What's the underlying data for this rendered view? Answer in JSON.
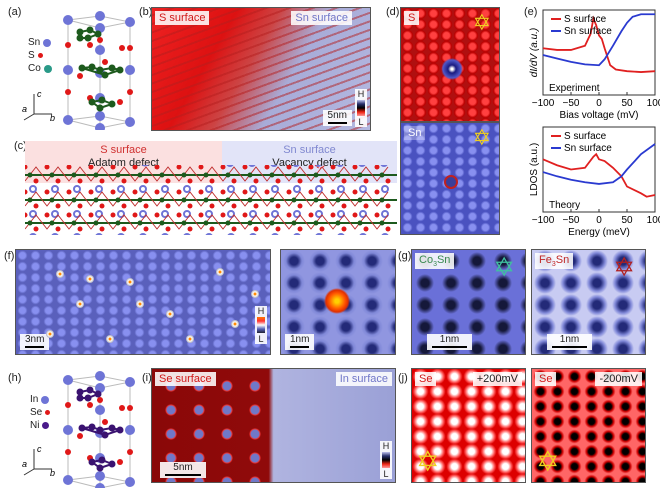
{
  "panels": {
    "a": "(a)",
    "b": "(b)",
    "c": "(c)",
    "d": "(d)",
    "e": "(e)",
    "f": "(f)",
    "g": "(g)",
    "h": "(h)",
    "i": "(i)",
    "j": "(j)"
  },
  "crystal_a": {
    "legend": [
      "Sn",
      "S",
      "Co"
    ],
    "colors": [
      "#6e74d6",
      "#e01818",
      "#2a9a88"
    ],
    "bond_color": "#1d5a1d",
    "axes": [
      "c",
      "a",
      "b"
    ]
  },
  "crystal_h": {
    "legend": [
      "In",
      "Se",
      "Ni"
    ],
    "colors": [
      "#6e74d6",
      "#e01818",
      "#4a1a8a"
    ],
    "bond_color": "#3a1270",
    "axes": [
      "c",
      "a",
      "b"
    ]
  },
  "b": {
    "left_tag": "S surface",
    "right_tag": "Sn surface",
    "scale": "5nm",
    "cbar_h": "H",
    "cbar_l": "L"
  },
  "c": {
    "left_title": "S surface",
    "left_sub": "Adatom defect",
    "right_title": "Sn surface",
    "right_sub": "Vacancy defect"
  },
  "d": {
    "top_tag": "S",
    "bottom_tag": "Sn"
  },
  "f": {
    "scale1": "3nm",
    "scale2": "1nm",
    "cbar_h": "H",
    "cbar_l": "L"
  },
  "g": {
    "left_tag_main": "Co",
    "left_tag_sub": "3",
    "left_tag_end": "Sn",
    "right_tag_main": "Fe",
    "right_tag_sub": "3",
    "right_tag_end": "Sn",
    "scale": "1nm"
  },
  "i": {
    "left_tag": "Se surface",
    "right_tag": "In surface",
    "scale": "5nm",
    "cbar_h": "H",
    "cbar_l": "L"
  },
  "j": {
    "left_tag": "Se",
    "left_bias": "+200mV",
    "right_tag": "Se",
    "right_bias": "-200mV"
  },
  "colors": {
    "s_surface": "#e02020",
    "sn_surface": "#2a3ad0",
    "star": "#f0d020"
  },
  "chart_data": [
    {
      "type": "line",
      "title": "",
      "annotation": "Experiment",
      "xlabel": "Bias voltage (mV)",
      "ylabel": "dI/dV (a.u.)",
      "xlim": [
        -100,
        100
      ],
      "xticks": [
        -100,
        -50,
        0,
        50,
        100
      ],
      "legend": "top-right",
      "series": [
        {
          "name": "S surface",
          "color": "#e02020",
          "x": [
            -100,
            -75,
            -50,
            -25,
            -15,
            -10,
            -5,
            0,
            5,
            10,
            20,
            30,
            50,
            75,
            100
          ],
          "y": [
            0.55,
            0.53,
            0.53,
            0.58,
            0.72,
            0.9,
            0.82,
            0.7,
            0.66,
            0.55,
            0.35,
            0.3,
            0.28,
            0.27,
            0.28
          ]
        },
        {
          "name": "Sn surface",
          "color": "#2a3ad0",
          "x": [
            -100,
            -75,
            -50,
            -25,
            0,
            10,
            25,
            40,
            50,
            60,
            75,
            100
          ],
          "y": [
            0.47,
            0.43,
            0.39,
            0.36,
            0.35,
            0.42,
            0.58,
            0.75,
            0.85,
            0.92,
            0.95,
            0.95
          ]
        }
      ]
    },
    {
      "type": "line",
      "title": "",
      "annotation": "Theory",
      "xlabel": "Energy (meV)",
      "ylabel": "LDOS (a.u.)",
      "xlim": [
        -100,
        100
      ],
      "xticks": [
        -100,
        -50,
        0,
        50,
        100
      ],
      "legend": "top-right",
      "series": [
        {
          "name": "S surface",
          "color": "#e02020",
          "x": [
            -100,
            -75,
            -50,
            -25,
            -10,
            -5,
            0,
            10,
            25,
            40,
            50,
            75,
            85,
            100
          ],
          "y": [
            0.62,
            0.55,
            0.5,
            0.52,
            0.65,
            0.68,
            0.62,
            0.6,
            0.52,
            0.42,
            0.3,
            0.22,
            0.18,
            0.2
          ]
        },
        {
          "name": "Sn surface",
          "color": "#2a3ad0",
          "x": [
            -100,
            -75,
            -50,
            -25,
            0,
            25,
            40,
            50,
            75,
            100
          ],
          "y": [
            0.47,
            0.42,
            0.38,
            0.35,
            0.33,
            0.35,
            0.42,
            0.5,
            0.68,
            0.8
          ]
        }
      ]
    }
  ]
}
